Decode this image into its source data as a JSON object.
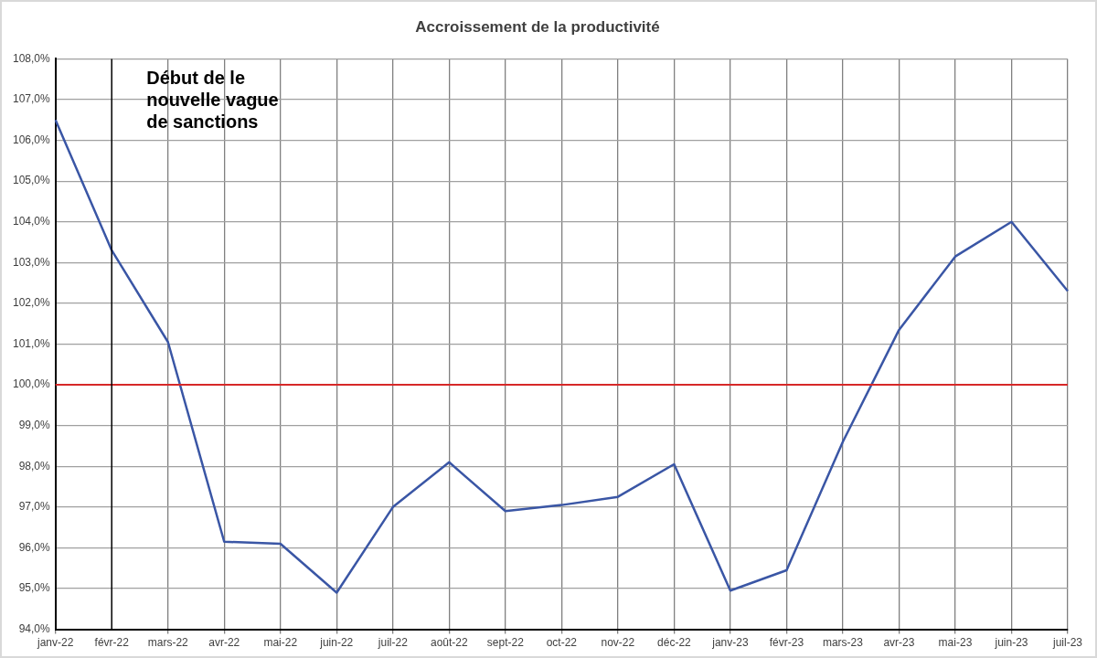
{
  "chart_data": {
    "type": "line",
    "title": "Accroissement de la productivité",
    "categories": [
      "janv-22",
      "févr-22",
      "mars-22",
      "avr-22",
      "mai-22",
      "juin-22",
      "juil-22",
      "août-22",
      "sept-22",
      "oct-22",
      "nov-22",
      "déc-22",
      "janv-23",
      "févr-23",
      "mars-23",
      "avr-23",
      "mai-23",
      "juin-23",
      "juil-23"
    ],
    "series": [
      {
        "color": "#3a56a5",
        "values": [
          106.5,
          103.3,
          101.05,
          96.15,
          96.1,
          94.9,
          97.0,
          98.1,
          96.9,
          97.05,
          97.25,
          98.05,
          94.95,
          95.45,
          98.6,
          101.35,
          103.15,
          104.0,
          102.3
        ]
      }
    ],
    "ylim": [
      94,
      108
    ],
    "yticks": [
      {
        "value": 94,
        "label": "94,0%"
      },
      {
        "value": 95,
        "label": "95,0%"
      },
      {
        "value": 96,
        "label": "96,0%"
      },
      {
        "value": 97,
        "label": "97,0%"
      },
      {
        "value": 98,
        "label": "98,0%"
      },
      {
        "value": 99,
        "label": "99,0%"
      },
      {
        "value": 100,
        "label": "100,0%"
      },
      {
        "value": 101,
        "label": "101,0%"
      },
      {
        "value": 102,
        "label": "102,0%"
      },
      {
        "value": 103,
        "label": "103,0%"
      },
      {
        "value": 104,
        "label": "104,0%"
      },
      {
        "value": 105,
        "label": "105,0%"
      },
      {
        "value": 106,
        "label": "106,0%"
      },
      {
        "value": 107,
        "label": "107,0%"
      },
      {
        "value": 108,
        "label": "108,0%"
      }
    ],
    "ref_lines": [
      {
        "axis": "y",
        "value": 100,
        "color": "#d62828"
      },
      {
        "axis": "x",
        "value": "févr-22",
        "label": "Début de le nouvelle vague de sanctions",
        "color": "#000000"
      }
    ],
    "grid": true,
    "legend": false,
    "marker": "none",
    "line_style": "solid"
  }
}
